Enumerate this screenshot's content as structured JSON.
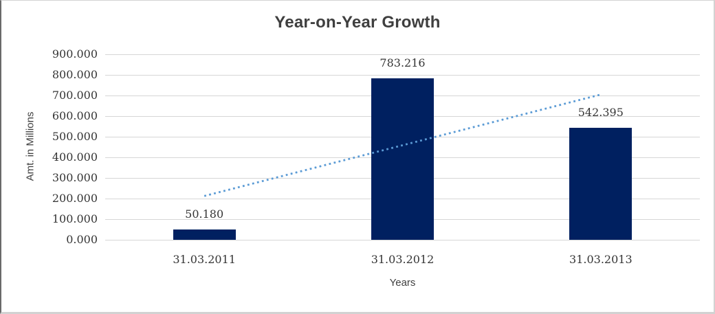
{
  "chart_data": {
    "type": "bar",
    "title": "Year-on-Year Growth",
    "xlabel": "Years",
    "ylabel": "Amt. in Millions",
    "categories": [
      "31.03.2011",
      "31.03.2012",
      "31.03.2013"
    ],
    "values": [
      50.18,
      783.216,
      542.395
    ],
    "value_labels": [
      "50.180",
      "783.216",
      "542.395"
    ],
    "ylim": [
      0,
      900
    ],
    "ytick_step": 100,
    "ytick_labels": [
      "0.000",
      "100.000",
      "200.000",
      "300.000",
      "400.000",
      "500.000",
      "600.000",
      "700.000",
      "800.000",
      "900.000"
    ],
    "grid": true,
    "legend": "none",
    "trendline": {
      "type": "linear",
      "style": "dotted"
    },
    "colors": {
      "bar": "#002060",
      "trendline": "#5b9bd5",
      "gridline": "#d6d6d6",
      "text": "#3f3f3f",
      "numeral": "#353535"
    }
  }
}
